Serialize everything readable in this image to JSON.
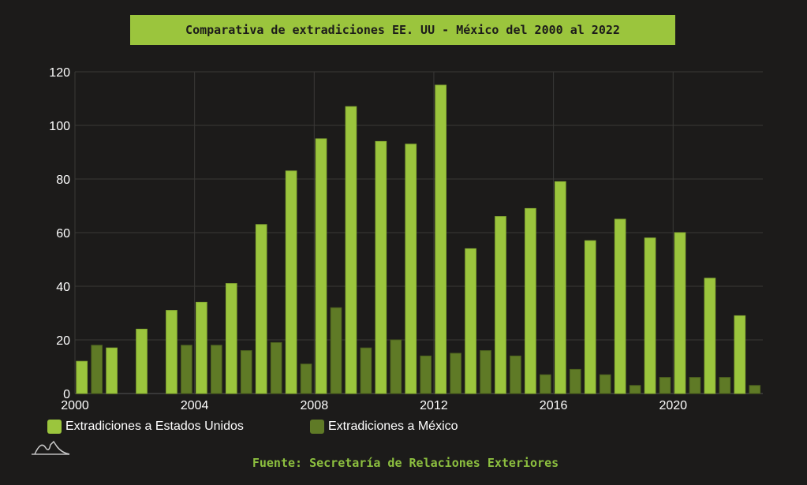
{
  "chart_data": {
    "type": "bar",
    "title": "Comparativa de extradiciones EE. UU - México del 2000 al 2022",
    "x": [
      2000,
      2001,
      2002,
      2003,
      2004,
      2005,
      2006,
      2007,
      2008,
      2009,
      2010,
      2011,
      2012,
      2013,
      2014,
      2015,
      2016,
      2017,
      2018,
      2019,
      2020,
      2021,
      2022
    ],
    "series": [
      {
        "name": "Extradiciones a Estados Unidos",
        "color": "#9bc53d",
        "values": [
          12,
          17,
          24,
          31,
          34,
          41,
          63,
          83,
          95,
          107,
          94,
          93,
          115,
          54,
          66,
          69,
          79,
          57,
          65,
          58,
          60,
          43,
          29
        ]
      },
      {
        "name": "Extradiciones a México",
        "color": "#5f7a26",
        "values": [
          18,
          0,
          0,
          18,
          18,
          16,
          19,
          11,
          32,
          17,
          20,
          14,
          15,
          16,
          14,
          7,
          9,
          7,
          3,
          6,
          6,
          6,
          3
        ]
      }
    ],
    "xticks": [
      2000,
      2004,
      2008,
      2012,
      2016,
      2020
    ],
    "yticks": [
      0,
      20,
      40,
      60,
      80,
      100,
      120
    ],
    "xlim": [
      2000,
      2023
    ],
    "ylim": [
      0,
      120
    ],
    "grid": true,
    "legend": "bottom-left",
    "source": "Fuente: Secretaría de Relaciones Exteriores"
  },
  "colors": {
    "background": "#1c1b1a",
    "accent": "#9bc53d"
  }
}
